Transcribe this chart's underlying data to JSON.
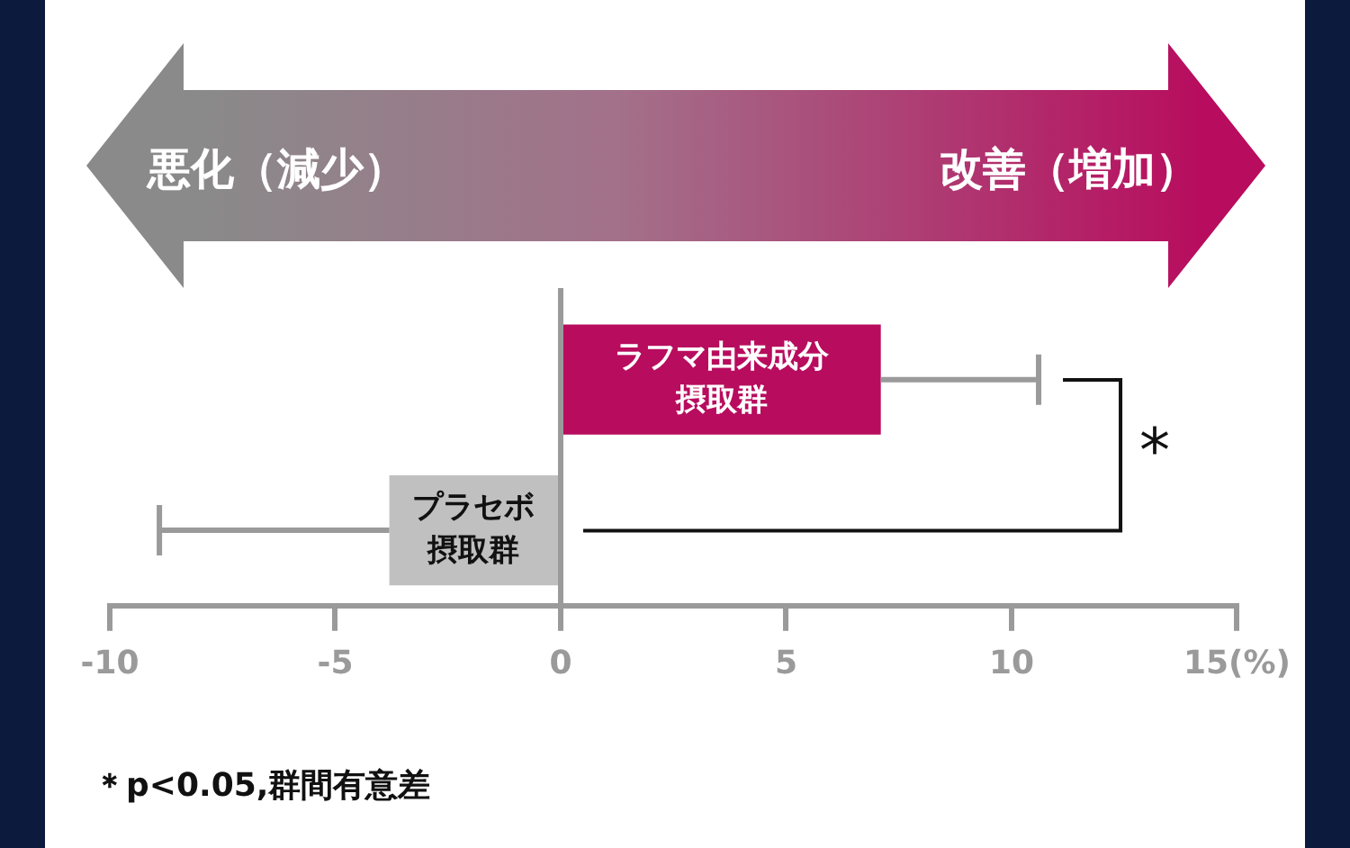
{
  "chart_data": {
    "type": "bar",
    "orientation": "horizontal",
    "categories": [
      "ラフマ由来成分摂取群",
      "プラセボ摂取群"
    ],
    "values": [
      7.1,
      -3.8
    ],
    "colors": [
      "#b80c5e",
      "#c0c0c0"
    ],
    "errors": [
      [
        7.1,
        10.6
      ],
      [
        -8.9,
        -3.8
      ]
    ],
    "xlim": [
      -10,
      15
    ],
    "xticks": [
      -10,
      -5,
      0,
      5,
      10,
      {
        "value": 15,
        "label": "15(%)"
      }
    ],
    "ref_lines": [
      {
        "axis": "x",
        "value": 0,
        "color": "#9a9a9a"
      }
    ],
    "grid": false,
    "legend": false,
    "annotations": [
      "悪化（減少）",
      "改善（増加）",
      "*",
      "＊p<0.05,群間有意差"
    ]
  }
}
